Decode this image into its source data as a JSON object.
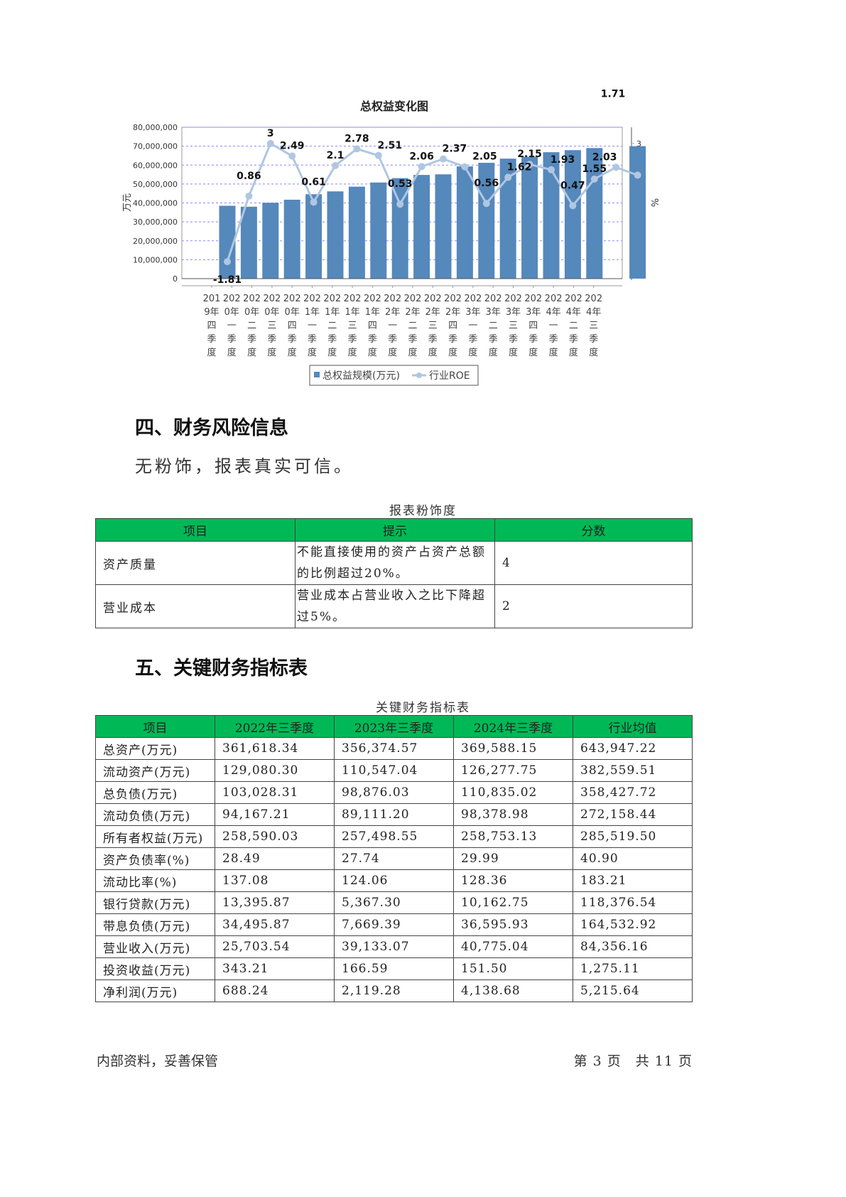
{
  "chart_data": {
    "type": "bar+line",
    "title": "总权益变化图",
    "ylabel_left": "万元",
    "ylabel_right": "%",
    "ylim_left": [
      0,
      80000000
    ],
    "ylim_right": [
      -2.5,
      3.66
    ],
    "yticks_left": [
      "0",
      "10,000,000",
      "20,000,000",
      "30,000,000",
      "40,000,000",
      "50,000,000",
      "60,000,000",
      "70,000,000",
      "80,000,000"
    ],
    "yticks_right": [
      "-2",
      "-1",
      "0",
      "1",
      "2",
      "3"
    ],
    "grid": true,
    "legend_position": "bottom",
    "categories": [
      "2019年四季度",
      "2020年一季度",
      "2020年二季度",
      "2020年三季度",
      "2020年四季度",
      "2021年一季度",
      "2021年二季度",
      "2021年三季度",
      "2021年四季度",
      "2022年一季度",
      "2022年二季度",
      "2022年三季度",
      "2022年四季度",
      "2023年一季度",
      "2023年二季度",
      "2023年三季度",
      "2023年四季度",
      "2024年一季度",
      "2024年二季度",
      "2024年三季度"
    ],
    "series": [
      {
        "name": "总权益规模(万元)",
        "type": "bar",
        "color": "#5588bb",
        "values": [
          38500000,
          38000000,
          40100000,
          41700000,
          44600000,
          46100000,
          48600000,
          50800000,
          53100000,
          54800000,
          55100000,
          59300000,
          61200000,
          63400000,
          64400000,
          66800000,
          67900000,
          69000000,
          null,
          70000000
        ]
      },
      {
        "name": "行业ROE",
        "type": "line",
        "color": "#b0c6e2",
        "values": [
          -1.81,
          0.86,
          3,
          2.49,
          0.61,
          2.1,
          2.78,
          2.51,
          0.53,
          2.06,
          2.37,
          2.05,
          0.56,
          1.62,
          2.15,
          1.93,
          0.47,
          1.55,
          2.03,
          1.71
        ]
      }
    ]
  },
  "sections": {
    "s4": "四、财务风险信息",
    "s4_text": "无粉饰，报表真实可信。",
    "s5": "五、关键财务指标表"
  },
  "risk_table": {
    "caption": "报表粉饰度",
    "headers": [
      "项目",
      "提示",
      "分数"
    ],
    "rows": [
      [
        "资产质量",
        "不能直接使用的资产占资产总额的比例超过20%。",
        "4"
      ],
      [
        "营业成本",
        "营业成本占营业收入之比下降超过5%。",
        "2"
      ]
    ]
  },
  "kpi_table": {
    "caption": "关键财务指标表",
    "headers": [
      "项目",
      "2022年三季度",
      "2023年三季度",
      "2024年三季度",
      "行业均值"
    ],
    "rows": [
      [
        "总资产(万元)",
        "361,618.34",
        "356,374.57",
        "369,588.15",
        "643,947.22"
      ],
      [
        "流动资产(万元)",
        "129,080.30",
        "110,547.04",
        "126,277.75",
        "382,559.51"
      ],
      [
        "总负债(万元)",
        "103,028.31",
        "98,876.03",
        "110,835.02",
        "358,427.72"
      ],
      [
        "流动负债(万元)",
        "94,167.21",
        "89,111.20",
        "98,378.98",
        "272,158.44"
      ],
      [
        "所有者权益(万元)",
        "258,590.03",
        "257,498.55",
        "258,753.13",
        "285,519.50"
      ],
      [
        "资产负债率(%)",
        "28.49",
        "27.74",
        "29.99",
        "40.90"
      ],
      [
        "流动比率(%)",
        "137.08",
        "124.06",
        "128.36",
        "183.21"
      ],
      [
        "银行贷款(万元)",
        "13,395.87",
        "5,367.30",
        "10,162.75",
        "118,376.54"
      ],
      [
        "带息负债(万元)",
        "34,495.87",
        "7,669.39",
        "36,595.93",
        "164,532.92"
      ],
      [
        "营业收入(万元)",
        "25,703.54",
        "39,133.07",
        "40,775.04",
        "84,356.16"
      ],
      [
        "投资收益(万元)",
        "343.21",
        "166.59",
        "151.50",
        "1,275.11"
      ],
      [
        "净利润(万元)",
        "688.24",
        "2,119.28",
        "4,138.68",
        "5,215.64"
      ]
    ]
  },
  "footer": {
    "left": "内部资料，妥善保管",
    "right": "第 3 页　共 11 页"
  }
}
